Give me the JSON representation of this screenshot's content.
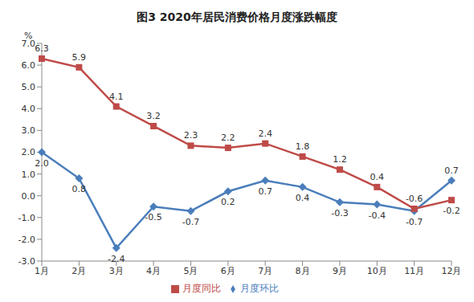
{
  "chart_data": {
    "type": "line",
    "title": "图3 2020年居民消费价格月度涨跌幅度",
    "ylabel": "%",
    "categories": [
      "1月",
      "2月",
      "3月",
      "4月",
      "5月",
      "6月",
      "7月",
      "8月",
      "9月",
      "10月",
      "11月",
      "12月"
    ],
    "series": [
      {
        "name": "月度环比",
        "color": "#4A7EBB",
        "marker": "diamond",
        "values": [
          2.0,
          0.8,
          -2.4,
          -0.5,
          -0.7,
          0.2,
          0.7,
          0.4,
          -0.3,
          -0.4,
          -0.7,
          0.7
        ],
        "value_labels": [
          "2.0",
          "0.8",
          "-2.4",
          "-0.5",
          "-0.7",
          "0.2",
          "0.7",
          "0.4",
          "-0.3",
          "-0.4",
          "-0.7",
          "0.7"
        ]
      },
      {
        "name": "月度同比",
        "color": "#BE4B48",
        "marker": "square",
        "values": [
          6.3,
          5.9,
          4.1,
          3.2,
          2.3,
          2.2,
          2.4,
          1.8,
          1.2,
          0.4,
          -0.6,
          -0.2
        ],
        "value_labels": [
          "6.3",
          "5.9",
          "4.1",
          "3.2",
          "2.3",
          "2.2",
          "2.4",
          "1.8",
          "1.2",
          "0.4",
          "-0.6",
          "-0.2"
        ]
      }
    ],
    "ylim": [
      -3,
      7
    ],
    "yticks": [
      {
        "value": -3,
        "label": "-3.0"
      },
      {
        "value": -2,
        "label": "-2.0"
      },
      {
        "value": -1,
        "label": "-1.0"
      },
      {
        "value": 0,
        "label": "0.0"
      },
      {
        "value": 1,
        "label": "1.0"
      },
      {
        "value": 2,
        "label": "2.0"
      },
      {
        "value": 3,
        "label": "3.0"
      },
      {
        "value": 4,
        "label": "4.0"
      },
      {
        "value": 5,
        "label": "5.0"
      },
      {
        "value": 6,
        "label": "6.0"
      },
      {
        "value": 7,
        "label": "7.0"
      }
    ],
    "grid": false,
    "legend": "bottom",
    "data_labels": true
  }
}
